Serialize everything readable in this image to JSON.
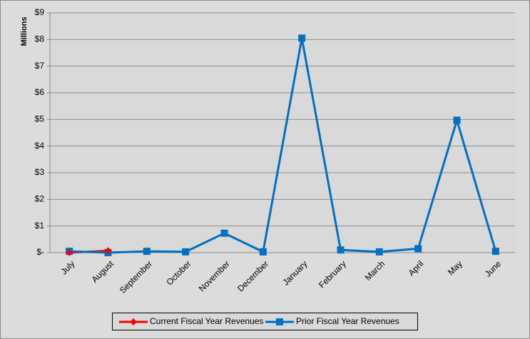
{
  "chart_data": {
    "type": "line",
    "y_axis_title": "Millions",
    "categories": [
      "July",
      "August",
      "September",
      "October",
      "November",
      "December",
      "January",
      "February",
      "March",
      "April",
      "May",
      "June"
    ],
    "series": [
      {
        "name": "Current Fiscal Year Revenues",
        "color": "#ff0000",
        "marker": "diamond",
        "values": [
          0.0,
          0.07,
          null,
          null,
          null,
          null,
          null,
          null,
          null,
          null,
          null,
          null
        ]
      },
      {
        "name": "Prior Fiscal Year Revenues",
        "color": "#0070c0",
        "marker": "square",
        "values": [
          0.05,
          0.0,
          0.05,
          0.03,
          0.73,
          0.03,
          8.05,
          0.1,
          0.03,
          0.15,
          4.97,
          0.05
        ]
      }
    ],
    "ylim": [
      0,
      9
    ],
    "yticks": [
      {
        "value": 0,
        "label": "$-"
      },
      {
        "value": 1,
        "label": "$1"
      },
      {
        "value": 2,
        "label": "$2"
      },
      {
        "value": 3,
        "label": "$3"
      },
      {
        "value": 4,
        "label": "$4"
      },
      {
        "value": 5,
        "label": "$5"
      },
      {
        "value": 6,
        "label": "$6"
      },
      {
        "value": 7,
        "label": "$7"
      },
      {
        "value": 8,
        "label": "$8"
      },
      {
        "value": 9,
        "label": "$9"
      }
    ],
    "grid": true,
    "legend": "bottom"
  }
}
